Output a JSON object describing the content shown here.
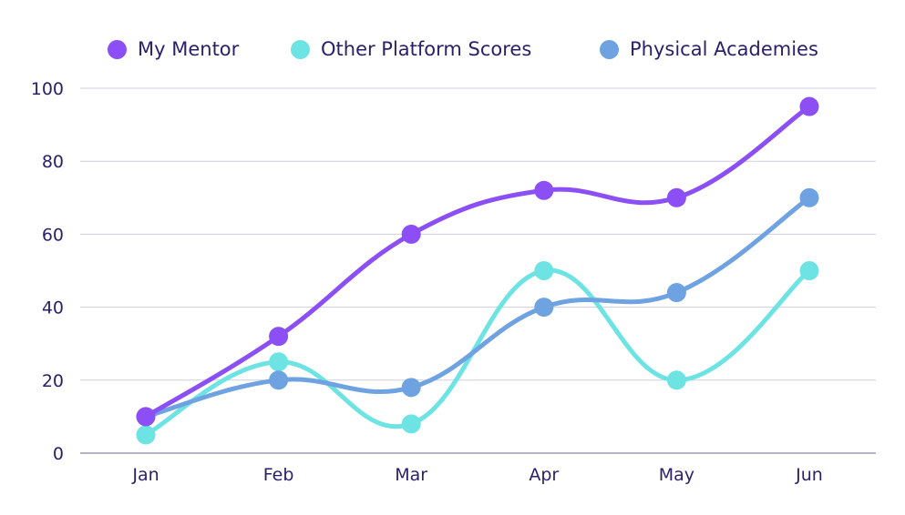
{
  "chart_data": {
    "type": "line",
    "categories": [
      "Jan",
      "Feb",
      "Mar",
      "Apr",
      "May",
      "Jun"
    ],
    "ylim": [
      0,
      100
    ],
    "yticks": [
      0,
      20,
      40,
      60,
      80,
      100
    ],
    "grid": true,
    "legend_position": "top",
    "series": [
      {
        "name": "My Mentor",
        "color": "#8b4ff5",
        "values": [
          10,
          32,
          60,
          72,
          70,
          95
        ]
      },
      {
        "name": "Other Platform Scores",
        "color": "#6ee3e3",
        "values": [
          5,
          25,
          8,
          50,
          20,
          50
        ]
      },
      {
        "name": "Physical Academies",
        "color": "#6ea2e1",
        "values": [
          10,
          20,
          18,
          40,
          44,
          70
        ]
      }
    ]
  }
}
